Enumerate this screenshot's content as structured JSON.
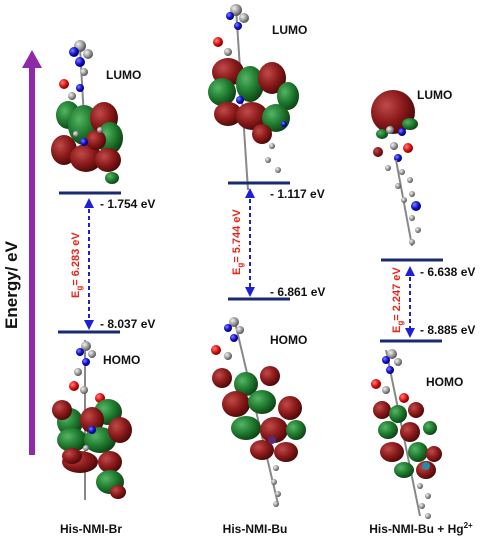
{
  "axis": {
    "label": "Energy/ eV",
    "arrow_color": "#8e2aa8"
  },
  "colors": {
    "level_line": "#1a2a6e",
    "gap_arrow": "#1f1fd6",
    "gap_text": "#e8251c",
    "orbital_red": "#8b1a1a",
    "orbital_green": "#1f7a2e",
    "atom_gray": "#9a9a9a"
  },
  "columns": [
    {
      "name": "His-NMI-Br",
      "lumo_label": "LUMO",
      "homo_label": "HOMO",
      "lumo_energy": "- 1.754 eV",
      "homo_energy": "- 8.037 eV",
      "gap_text": "6.283 eV",
      "lumo_value": -1.754,
      "homo_value": -8.037
    },
    {
      "name": "His-NMI-Bu",
      "lumo_label": "LUMO",
      "homo_label": "HOMO",
      "lumo_energy": "- 1.117 eV",
      "homo_energy": "- 6.861 eV",
      "gap_text": "5.744 eV",
      "lumo_value": -1.117,
      "homo_value": -6.861
    },
    {
      "name": "His-NMI-Bu + Hg",
      "name_sup": "2+",
      "lumo_label": "LUMO",
      "homo_label": "HOMO",
      "lumo_energy": "- 6.638 eV",
      "homo_energy": "- 8.885 eV",
      "gap_text": "2.247 eV",
      "lumo_value": -6.638,
      "homo_value": -8.885
    }
  ],
  "gap_symbol": "E",
  "gap_subscript": "g"
}
